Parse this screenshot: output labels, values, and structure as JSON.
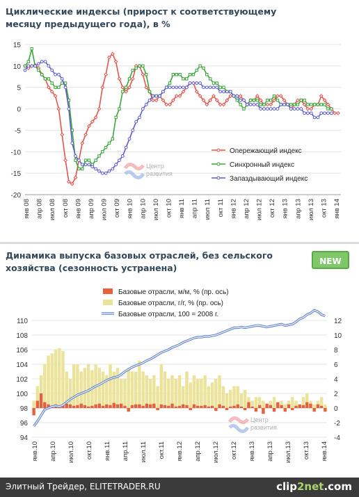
{
  "chart_data": [
    {
      "type": "line",
      "title": "Циклические индексы (прирост к соответствующему месяцу предыдущего года), в %",
      "ylim": [
        -20,
        15
      ],
      "yticks": [
        -20,
        -15,
        -10,
        -5,
        0,
        5,
        10,
        15
      ],
      "grid": "horizontal",
      "legend_position": "right-center",
      "x_tick_labels": [
        "янв 08",
        "апр 08",
        "июл 08",
        "окт 08",
        "янв 09",
        "апр 09",
        "июл 09",
        "окт 09",
        "янв 10",
        "апр 10",
        "июл 10",
        "окт 10",
        "янв 11",
        "апр 11",
        "июл 11",
        "окт 11",
        "янв 12",
        "апр 12",
        "июл 12",
        "окт 12",
        "янв 13",
        "апр 13",
        "июл 13",
        "окт 13",
        "янв 14"
      ],
      "series": [
        {
          "name": "Опережающий индекс",
          "color": "#e5534b",
          "marker": "diamond",
          "values": [
            10,
            9.5,
            10,
            10.2,
            9.5,
            8,
            7,
            5,
            4,
            3,
            0,
            -6,
            -12,
            -17,
            -17.5,
            -16,
            -12,
            -8,
            -6,
            -4,
            -3,
            -2,
            0,
            5,
            8,
            12,
            12.8,
            11,
            7,
            5,
            4,
            5,
            7,
            10,
            10,
            8,
            5,
            4,
            2,
            2,
            3,
            2,
            1,
            1,
            2,
            3,
            3,
            4,
            5,
            6,
            6,
            4,
            3,
            2,
            1,
            2,
            3,
            2,
            1,
            1,
            2,
            3,
            3,
            3,
            3,
            2,
            1,
            2,
            2,
            3,
            2,
            1,
            1,
            1,
            2,
            3,
            3,
            2,
            1,
            0,
            1,
            2,
            2,
            1,
            0,
            0,
            1,
            1,
            3,
            2,
            1,
            0,
            -1,
            -1
          ]
        },
        {
          "name": "Синхронный индекс",
          "color": "#3aa53a",
          "marker": "square",
          "values": [
            10,
            11,
            14,
            10,
            9,
            8,
            7,
            7,
            6,
            5,
            5,
            6,
            6,
            2,
            -5,
            -12,
            -14,
            -14,
            -12,
            -12,
            -13,
            -12,
            -11,
            -10,
            -9,
            -8,
            -7,
            -2,
            0,
            4,
            5,
            7,
            9,
            9.5,
            10,
            10,
            8,
            4,
            3,
            3,
            3,
            4,
            5,
            6,
            8,
            8,
            8,
            7,
            7,
            8,
            8,
            9,
            10,
            9.5,
            8,
            7,
            6,
            6,
            5,
            5,
            4,
            4,
            3,
            2,
            1,
            0,
            1,
            2,
            2,
            2,
            1,
            1,
            2,
            2,
            3,
            2,
            1,
            1,
            1,
            1,
            1,
            1,
            2,
            2,
            1,
            1,
            1,
            1,
            1,
            1,
            0,
            0
          ]
        },
        {
          "name": "Запаздывающий индекс",
          "color": "#5b5bd0",
          "marker": "circle",
          "values": [
            9,
            10,
            10,
            10,
            10.5,
            11,
            11,
            10,
            9,
            8,
            8,
            7,
            5,
            0,
            -8,
            -11,
            -12,
            -13,
            -13,
            -13,
            -13.5,
            -14,
            -14.5,
            -15,
            -15,
            -14.5,
            -14,
            -13,
            -12,
            -11,
            -9,
            -7,
            -5,
            -3,
            -2,
            0,
            1,
            2,
            3,
            3,
            3,
            4,
            5,
            5,
            5,
            5,
            5,
            5,
            5,
            6,
            6,
            6,
            6,
            5,
            5,
            5,
            5,
            5,
            4,
            4,
            4,
            4,
            3,
            3,
            2,
            2,
            1,
            1,
            1,
            1,
            0,
            0,
            0,
            0,
            0,
            0,
            1,
            1,
            1,
            0,
            0,
            0,
            0,
            -1,
            -1,
            -1,
            -2,
            -2,
            -1,
            -1,
            -1,
            -1
          ]
        }
      ],
      "legend": [
        "Опережающий индекс",
        "Синхронный индекс",
        "Запаздывающий индекс"
      ],
      "watermark": "Центр развития"
    },
    {
      "type": "bar",
      "title": "Динамика выпуска базовых отраслей, без сельского хозяйства (сезонность устранена)",
      "ylim_left": [
        94,
        110
      ],
      "yticks_left": [
        94,
        96,
        98,
        100,
        102,
        104,
        106,
        108,
        110
      ],
      "ylim_right": [
        -4,
        12
      ],
      "yticks_right": [
        -4,
        -2,
        0,
        2,
        4,
        6,
        8,
        10,
        12
      ],
      "grid": "horizontal",
      "legend_position": "top-center",
      "x_tick_labels": [
        "янв.10",
        "апр.10",
        "июл.10",
        "окт.10",
        "янв.11",
        "апр.11",
        "июл.11",
        "окт.11",
        "янв.12",
        "апр.12",
        "июл.12",
        "окт.12",
        "янв.13",
        "апр.13",
        "июл.13",
        "окт.13",
        "янв.14"
      ],
      "series": [
        {
          "name": "Базовые отрасли, м/м, %   (пр. ось)",
          "axis": "right",
          "type": "bar",
          "color": "#e8603a",
          "values": [
            -1,
            1,
            2,
            0.8,
            0.5,
            0.3,
            0.5,
            0.2,
            0.5,
            0.6,
            0.5,
            0.3,
            0.4,
            0.6,
            0.4,
            0.2,
            0.3,
            0.5,
            0.6,
            0.3,
            0.5,
            0.4,
            0.7,
            0.5,
            0.6,
            0.3,
            -0.5,
            0.4,
            0.5,
            0.5,
            0.3,
            0.6,
            0.5,
            0.6,
            -0.3,
            0.5,
            0.4,
            0.3,
            0.6,
            0.2,
            0.3,
            0.5,
            0.4,
            -0.3,
            0.5,
            0.3,
            0.3,
            0.4,
            0.2,
            0.3,
            -0.4,
            0.5,
            0.3,
            -0.3,
            0.2,
            0.3,
            0.5,
            0.2,
            -0.3,
            0.8,
            0.2,
            -0.5,
            0.4,
            -0.8,
            0.6,
            0.4,
            -0.5,
            0.8,
            0.4,
            -0.5,
            0.5,
            -0.3,
            0.3,
            0.5,
            0.4,
            0.8,
            0.6,
            -0.5,
            0.5,
            0.3,
            -0.5
          ]
        },
        {
          "name": "Базовые отрасли, г/г, %   (пр. ось)",
          "axis": "right",
          "type": "bar",
          "color": "#ece39a",
          "values": [
            1,
            3,
            4.5,
            6,
            7.2,
            7.5,
            8,
            8.2,
            7.8,
            5,
            4,
            6,
            6,
            5,
            5.5,
            6,
            5.2,
            6,
            5.5,
            5,
            4.5,
            6,
            5,
            5.5,
            4,
            4,
            5.5,
            5,
            5,
            6.5,
            5,
            4.5,
            4,
            4.5,
            3,
            6,
            5,
            4,
            4.5,
            4,
            4.5,
            3,
            5,
            3.5,
            4.5,
            4,
            4,
            4.5,
            3,
            3.5,
            4,
            4.5,
            3,
            2,
            2.5,
            3,
            3,
            2,
            2.5,
            1.5,
            1,
            1.5,
            1.5,
            1,
            0.5,
            1,
            1.5,
            0.5,
            1,
            0.5,
            1,
            1.5,
            1,
            0.5,
            1.5,
            2,
            1,
            0.5,
            1,
            1.5,
            0.5
          ]
        },
        {
          "name": "Базовые отрасли, 100 = 2008 г.",
          "axis": "left",
          "type": "line",
          "color": "#5b7fd0",
          "values": [
            95.5,
            96.2,
            97,
            97.8,
            98,
            98.2,
            98.3,
            98.2,
            98.4,
            98.8,
            99.2,
            99.5,
            99.8,
            100,
            100.2,
            100.4,
            100.7,
            101,
            101.2,
            101.5,
            101.8,
            102,
            102.2,
            102.3,
            102.6,
            103,
            103.3,
            103.6,
            103.8,
            104,
            104.2,
            104.5,
            104.7,
            105,
            105.3,
            105.6,
            105.8,
            106,
            106.3,
            106.5,
            106.7,
            107,
            107.2,
            107.4,
            107.6,
            107.7,
            107.7,
            107.8,
            107.8,
            107.9,
            108,
            108.2,
            108.4,
            108.6,
            108.8,
            109,
            109,
            109.1,
            109,
            109.1,
            109.2,
            109.3,
            109.3,
            109.2,
            109.1,
            109.2,
            109.3,
            109.4,
            109.5,
            109.3,
            109.4,
            109.5,
            109.8,
            110.2,
            110.4,
            110.8,
            111,
            111.4,
            111.2,
            110.8,
            110.6
          ]
        }
      ],
      "legend": [
        "Базовые отрасли, м/м, %   (пр. ось)",
        "Базовые отрасли, г/г, %   (пр. ось)",
        "Базовые отрасли, 100 = 2008 г."
      ],
      "watermark": "Центр развития"
    }
  ],
  "panel2": {
    "badge": "NEW"
  },
  "footer": {
    "text": "Элитный Трейдер, ELITETRADER.RU",
    "brand_a": "clip",
    "brand_b": "2net",
    "brand_c": ".com"
  }
}
